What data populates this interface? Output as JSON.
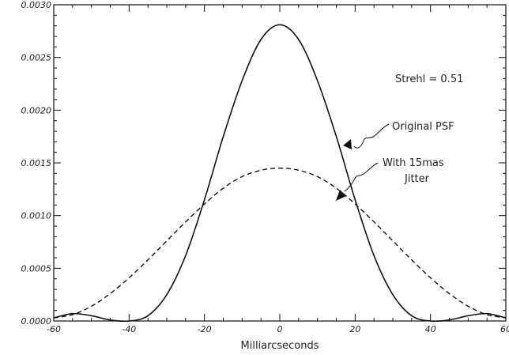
{
  "chart_data": {
    "type": "line",
    "xlabel": "Milliarcseconds",
    "ylabel": "",
    "xlim": [
      -60,
      60
    ],
    "ylim": [
      0,
      0.003
    ],
    "x_ticks": [
      "-60",
      "-40",
      "-20",
      "0",
      "20",
      "40",
      "60"
    ],
    "y_ticks": [
      "0.0000",
      "0.0005",
      "0.0010",
      "0.0015",
      "0.0020",
      "0.0025",
      "0.0030"
    ],
    "grid": false,
    "annotations": {
      "strehl": "Strehl = 0.51",
      "original": "Original PSF",
      "jitter_line1": "With 15mas",
      "jitter_line2": "Jitter"
    },
    "series": [
      {
        "name": "Original PSF",
        "style": "solid",
        "x": [
          -60,
          -55,
          -50,
          -45,
          -40,
          -35,
          -30,
          -25,
          -20,
          -15,
          -10,
          -5,
          0,
          5,
          10,
          15,
          20,
          25,
          30,
          35,
          40,
          45,
          50,
          55,
          60
        ],
        "y": [
          3e-05,
          7e-05,
          5e-05,
          1e-05,
          0.0,
          5e-05,
          0.00025,
          0.00062,
          0.00115,
          0.00175,
          0.00228,
          0.00267,
          0.00281,
          0.00267,
          0.00228,
          0.00175,
          0.00115,
          0.00062,
          0.00025,
          5e-05,
          0.0,
          1e-05,
          5e-05,
          7e-05,
          3e-05
        ]
      },
      {
        "name": "With 15mas Jitter",
        "style": "dashed",
        "x": [
          -60,
          -55,
          -50,
          -45,
          -40,
          -35,
          -30,
          -25,
          -20,
          -15,
          -10,
          -5,
          0,
          5,
          10,
          15,
          20,
          25,
          30,
          35,
          40,
          45,
          50,
          55,
          60
        ],
        "y": [
          3e-05,
          6e-05,
          0.00014,
          0.00026,
          0.00041,
          0.00058,
          0.00076,
          0.00094,
          0.00111,
          0.00126,
          0.00137,
          0.00143,
          0.00145,
          0.00143,
          0.00137,
          0.00126,
          0.00111,
          0.00094,
          0.00076,
          0.00058,
          0.00041,
          0.00026,
          0.00014,
          6e-05,
          3e-05
        ]
      }
    ]
  }
}
